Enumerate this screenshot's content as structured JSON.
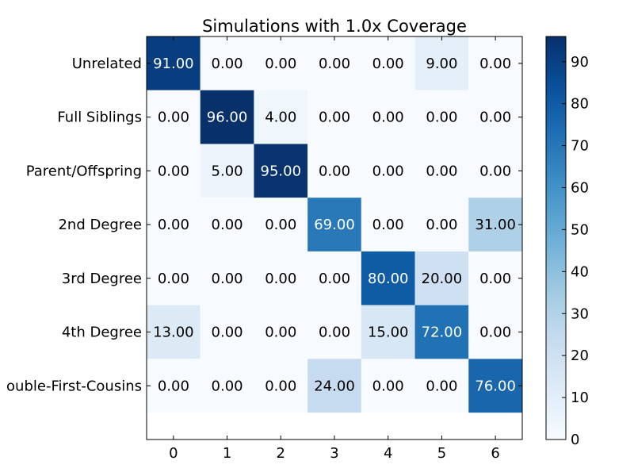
{
  "chart_data": {
    "type": "heatmap",
    "title": "Simulations with 1.0x Coverage",
    "xlabel": "",
    "ylabel": "",
    "x_ticks": [
      "0",
      "1",
      "2",
      "3",
      "4",
      "5",
      "6"
    ],
    "y_ticks": [
      "Unrelated",
      "Full Siblings",
      "Parent/Offspring",
      "2nd Degree",
      "3rd Degree",
      "4th Degree",
      "ouble-First-Cousins"
    ],
    "values": [
      [
        91,
        0,
        0,
        0,
        0,
        9,
        0
      ],
      [
        0,
        96,
        4,
        0,
        0,
        0,
        0
      ],
      [
        0,
        5,
        95,
        0,
        0,
        0,
        0
      ],
      [
        0,
        0,
        0,
        69,
        0,
        0,
        31
      ],
      [
        0,
        0,
        0,
        0,
        80,
        20,
        0
      ],
      [
        13,
        0,
        0,
        0,
        15,
        72,
        0
      ],
      [
        0,
        0,
        0,
        24,
        0,
        0,
        76
      ]
    ],
    "cell_labels": [
      [
        "91.00",
        "0.00",
        "0.00",
        "0.00",
        "0.00",
        "9.00",
        "0.00"
      ],
      [
        "0.00",
        "96.00",
        "4.00",
        "0.00",
        "0.00",
        "0.00",
        "0.00"
      ],
      [
        "0.00",
        "5.00",
        "95.00",
        "0.00",
        "0.00",
        "0.00",
        "0.00"
      ],
      [
        "0.00",
        "0.00",
        "0.00",
        "69.00",
        "0.00",
        "0.00",
        "31.00"
      ],
      [
        "0.00",
        "0.00",
        "0.00",
        "0.00",
        "80.00",
        "20.00",
        "0.00"
      ],
      [
        "13.00",
        "0.00",
        "0.00",
        "0.00",
        "15.00",
        "72.00",
        "0.00"
      ],
      [
        "0.00",
        "0.00",
        "0.00",
        "24.00",
        "0.00",
        "0.00",
        "76.00"
      ]
    ],
    "colormap": "Blues",
    "colorbar": {
      "range": [
        0,
        96
      ],
      "ticks": [
        "0",
        "10",
        "20",
        "30",
        "40",
        "50",
        "60",
        "70",
        "80",
        "90"
      ]
    },
    "x_range": [
      -0.5,
      6.5
    ],
    "y_range": [
      -0.5,
      7.0
    ],
    "grid": false
  }
}
